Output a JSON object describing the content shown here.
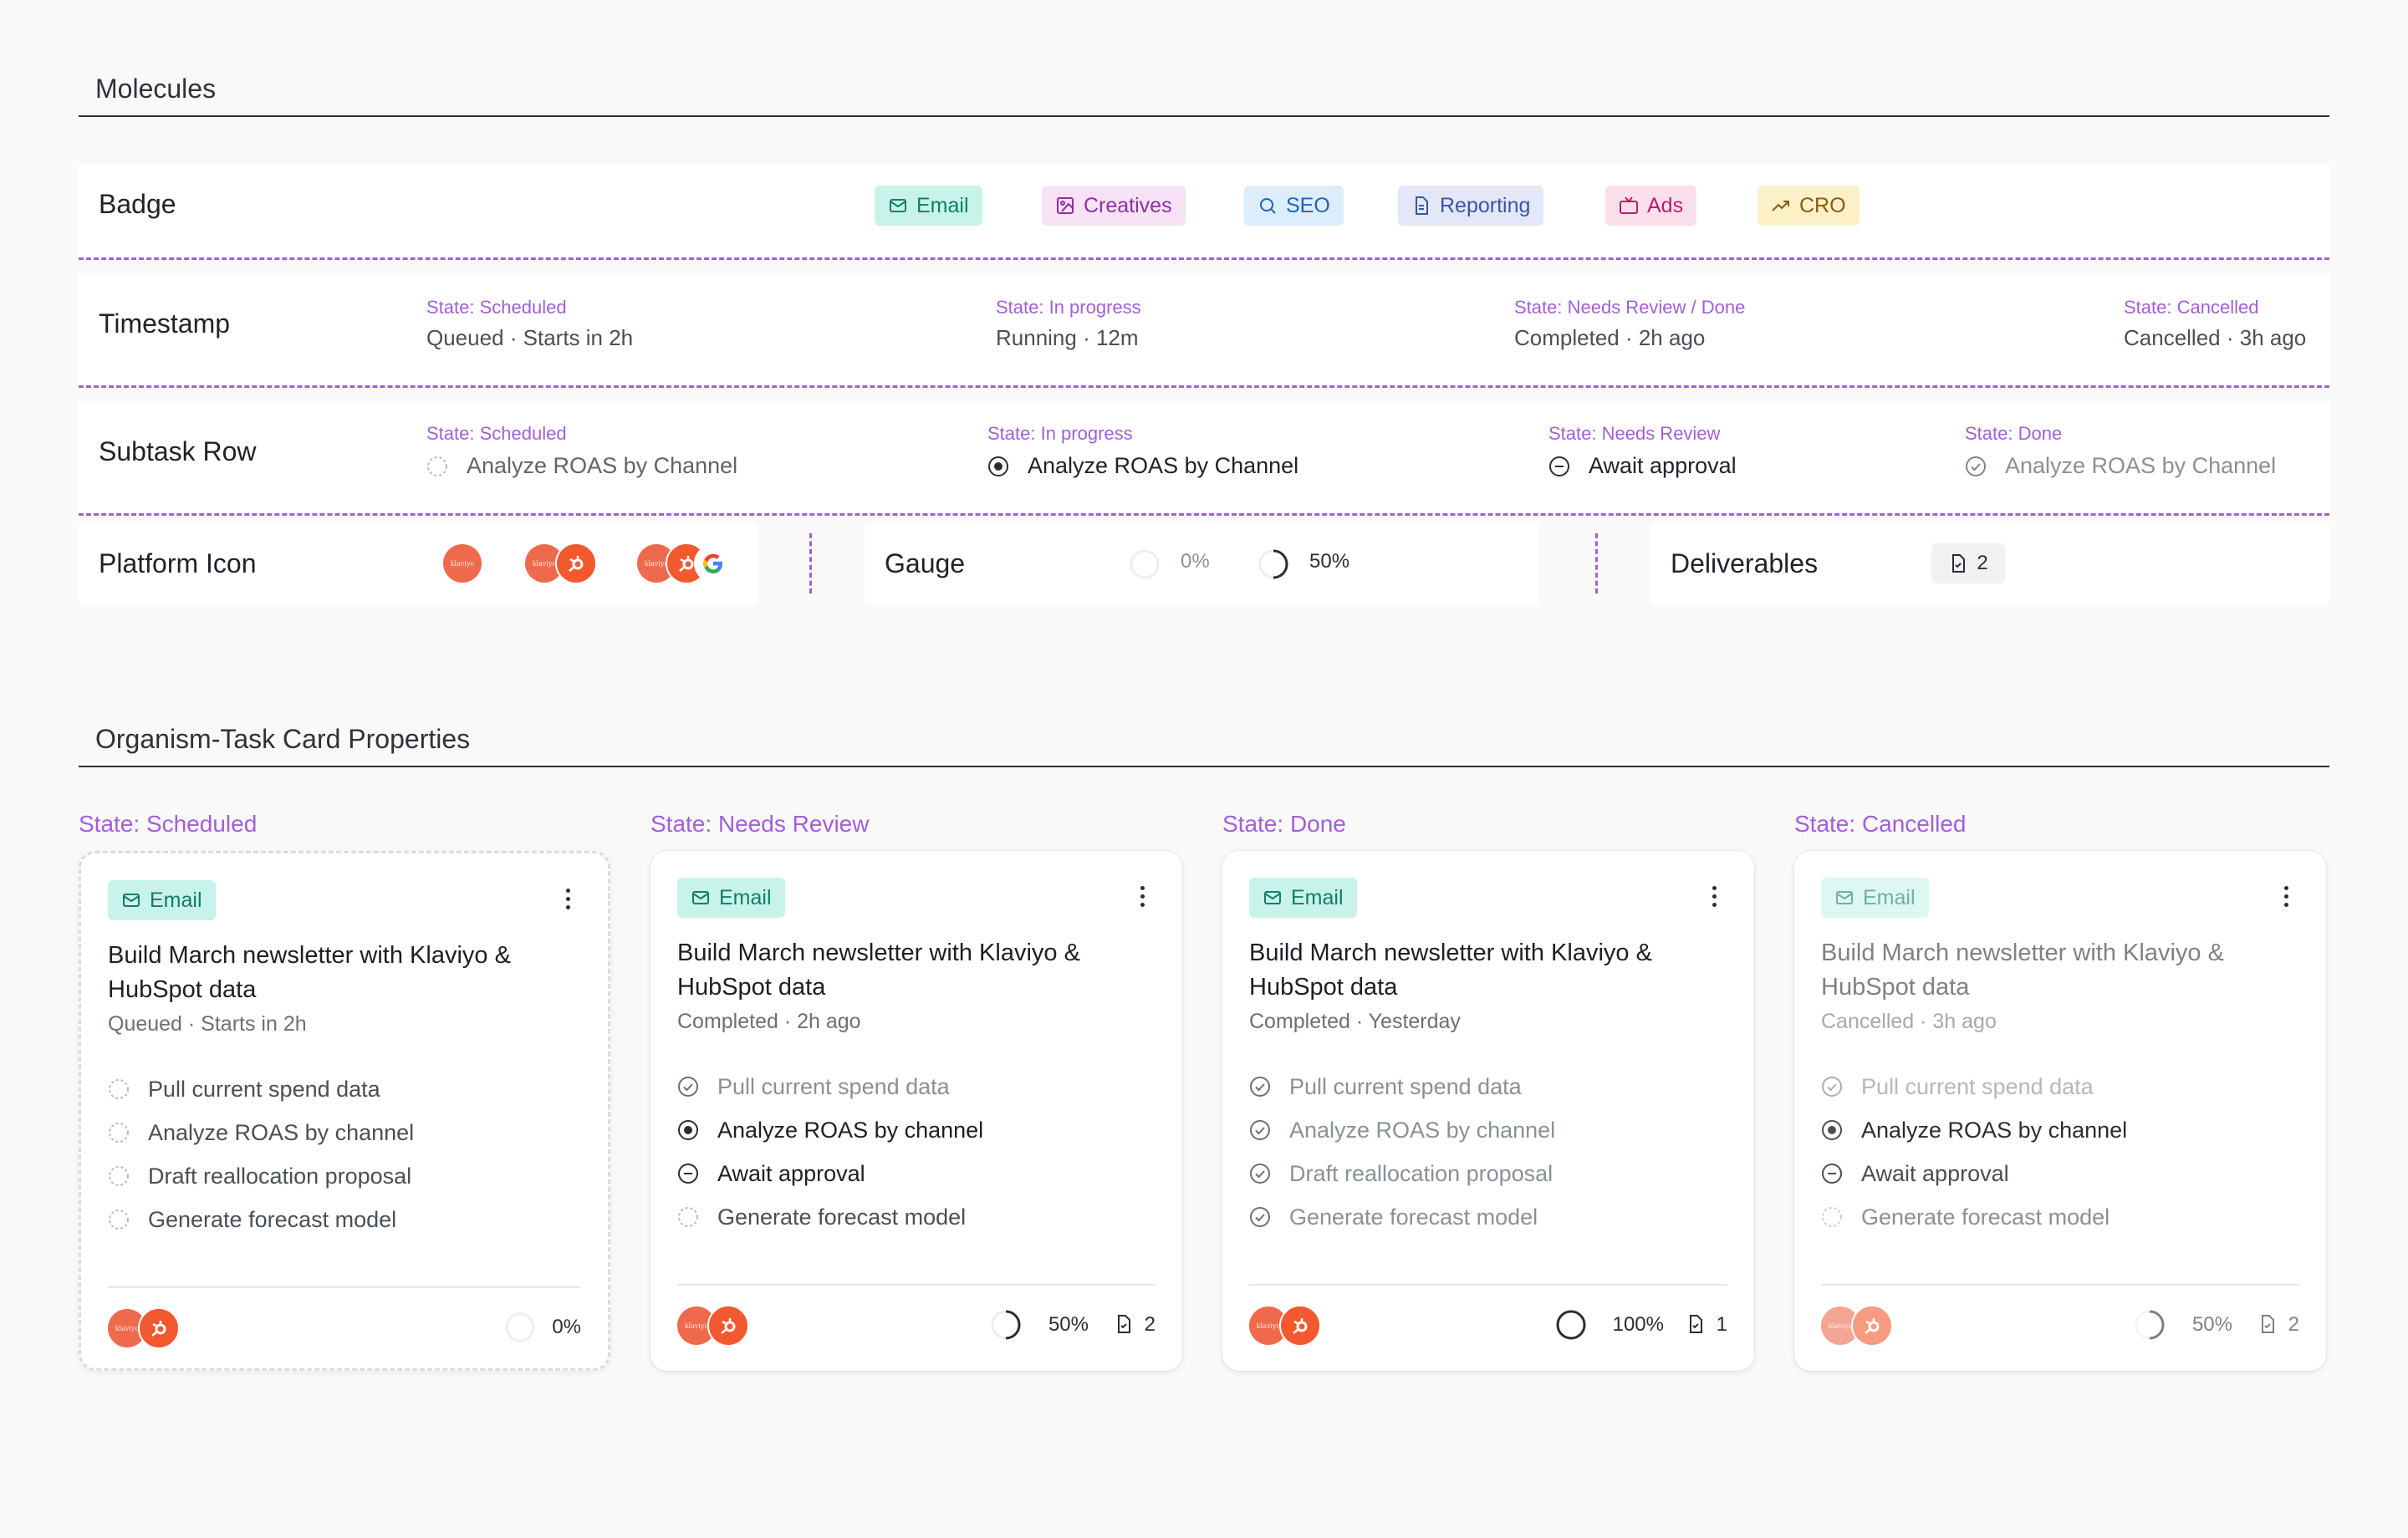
{
  "sections": {
    "molecules_title": "Molecules",
    "organism_title": "Organism-Task Card Properties"
  },
  "badge_row": {
    "label": "Badge",
    "badges": [
      {
        "label": "Email",
        "icon": "mail-icon",
        "bg": "#c8f3ea",
        "fg": "#0f7d6a"
      },
      {
        "label": "Creatives",
        "icon": "image-icon",
        "bg": "#f7e2f6",
        "fg": "#8e2fa0"
      },
      {
        "label": "SEO",
        "icon": "search-icon",
        "bg": "#dcedfb",
        "fg": "#1f62b5"
      },
      {
        "label": "Reporting",
        "icon": "document-icon",
        "bg": "#e3e7f8",
        "fg": "#3a55a8"
      },
      {
        "label": "Ads",
        "icon": "tv-icon",
        "bg": "#fbe0ec",
        "fg": "#c01a6c"
      },
      {
        "label": "CRO",
        "icon": "trend-up-icon",
        "bg": "#fcf0c8",
        "fg": "#8b5a0a"
      }
    ]
  },
  "timestamp_row": {
    "label": "Timestamp",
    "items": [
      {
        "state": "State: Scheduled",
        "value": "Queued · Starts in 2h"
      },
      {
        "state": "State: In progress",
        "value": "Running · 12m"
      },
      {
        "state": "State: Needs Review / Done",
        "value": "Completed · 2h ago"
      },
      {
        "state": "State: Cancelled",
        "value": "Cancelled · 3h ago"
      }
    ]
  },
  "subtask_row": {
    "label": "Subtask Row",
    "items": [
      {
        "state": "State: Scheduled",
        "text": "Analyze ROAS by Channel",
        "status": "scheduled"
      },
      {
        "state": "State: In progress",
        "text": "Analyze ROAS by Channel",
        "status": "in-progress"
      },
      {
        "state": "State: Needs Review",
        "text": "Await approval",
        "status": "needs-review"
      },
      {
        "state": "State: Done",
        "text": "Analyze ROAS by Channel",
        "status": "done"
      }
    ]
  },
  "platform_row": {
    "label": "Platform Icon",
    "logo_text": "klaviyo"
  },
  "gauge_row": {
    "label": "Gauge",
    "values": [
      {
        "label": "0%",
        "fraction": 0
      },
      {
        "label": "50%",
        "fraction": 0.5
      }
    ]
  },
  "deliverables_row": {
    "label": "Deliverables",
    "count": "2"
  },
  "cards": [
    {
      "state": "State: Scheduled",
      "badge": "Email",
      "title": "Build March newsletter with Klaviyo & HubSpot data",
      "meta": "Queued · Starts in 2h",
      "tasks": [
        {
          "text": "Pull current spend data",
          "status": "scheduled"
        },
        {
          "text": "Analyze ROAS by channel",
          "status": "scheduled"
        },
        {
          "text": "Draft reallocation proposal",
          "status": "scheduled"
        },
        {
          "text": "Generate forecast model",
          "status": "scheduled"
        }
      ],
      "progress": "0%",
      "progress_fraction": 0,
      "deliverables": ""
    },
    {
      "state": "State: Needs Review",
      "badge": "Email",
      "title": "Build March newsletter with Klaviyo & HubSpot data",
      "meta": "Completed · 2h ago",
      "tasks": [
        {
          "text": "Pull current spend data",
          "status": "done"
        },
        {
          "text": "Analyze ROAS by channel",
          "status": "in-progress"
        },
        {
          "text": "Await approval",
          "status": "needs-review"
        },
        {
          "text": "Generate forecast model",
          "status": "scheduled"
        }
      ],
      "progress": "50%",
      "progress_fraction": 0.5,
      "deliverables": "2"
    },
    {
      "state": "State: Done",
      "badge": "Email",
      "title": "Build March newsletter with Klaviyo & HubSpot data",
      "meta": "Completed · Yesterday",
      "tasks": [
        {
          "text": "Pull current spend data",
          "status": "done"
        },
        {
          "text": "Analyze ROAS by channel",
          "status": "done"
        },
        {
          "text": "Draft reallocation proposal",
          "status": "done"
        },
        {
          "text": "Generate forecast model",
          "status": "done"
        }
      ],
      "progress": "100%",
      "progress_fraction": 1,
      "deliverables": "1"
    },
    {
      "state": "State: Cancelled",
      "badge": "Email",
      "title": "Build March newsletter with Klaviyo & HubSpot data",
      "meta": "Cancelled · 3h ago",
      "tasks": [
        {
          "text": "Pull current spend data",
          "status": "done"
        },
        {
          "text": "Analyze ROAS by channel",
          "status": "in-progress"
        },
        {
          "text": "Await approval",
          "status": "needs-review"
        },
        {
          "text": "Generate forecast model",
          "status": "scheduled"
        }
      ],
      "progress": "50%",
      "progress_fraction": 0.5,
      "deliverables": "2"
    }
  ]
}
